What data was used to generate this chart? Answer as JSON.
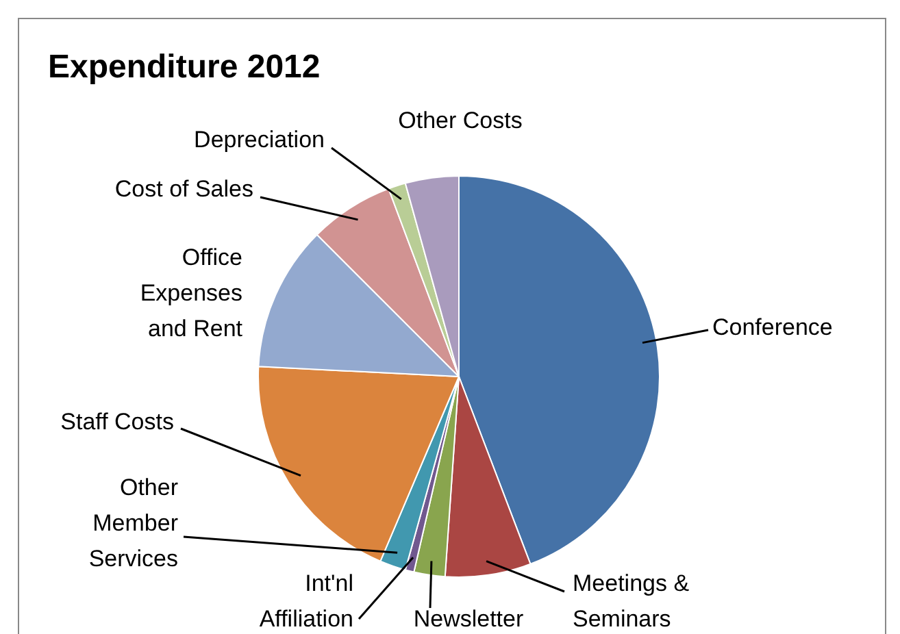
{
  "chart_data": {
    "type": "pie",
    "title": "Expenditure 2012",
    "categories": [
      "Conference",
      "Meetings & Seminars",
      "Newsletter",
      "Int'nl Affiliation",
      "Other Member Services",
      "Staff Costs",
      "Office Expenses and Rent",
      "Cost of Sales",
      "Depreciation",
      "Other Costs"
    ],
    "values": [
      44.2,
      6.9,
      2.5,
      0.7,
      2.1,
      19.4,
      11.7,
      6.8,
      1.4,
      4.3
    ],
    "colors": [
      "#4572a7",
      "#aa4643",
      "#89a54e",
      "#71588f",
      "#4198af",
      "#db843d",
      "#93a9cf",
      "#d19392",
      "#b9cd96",
      "#a99bbd"
    ],
    "legend": false
  }
}
